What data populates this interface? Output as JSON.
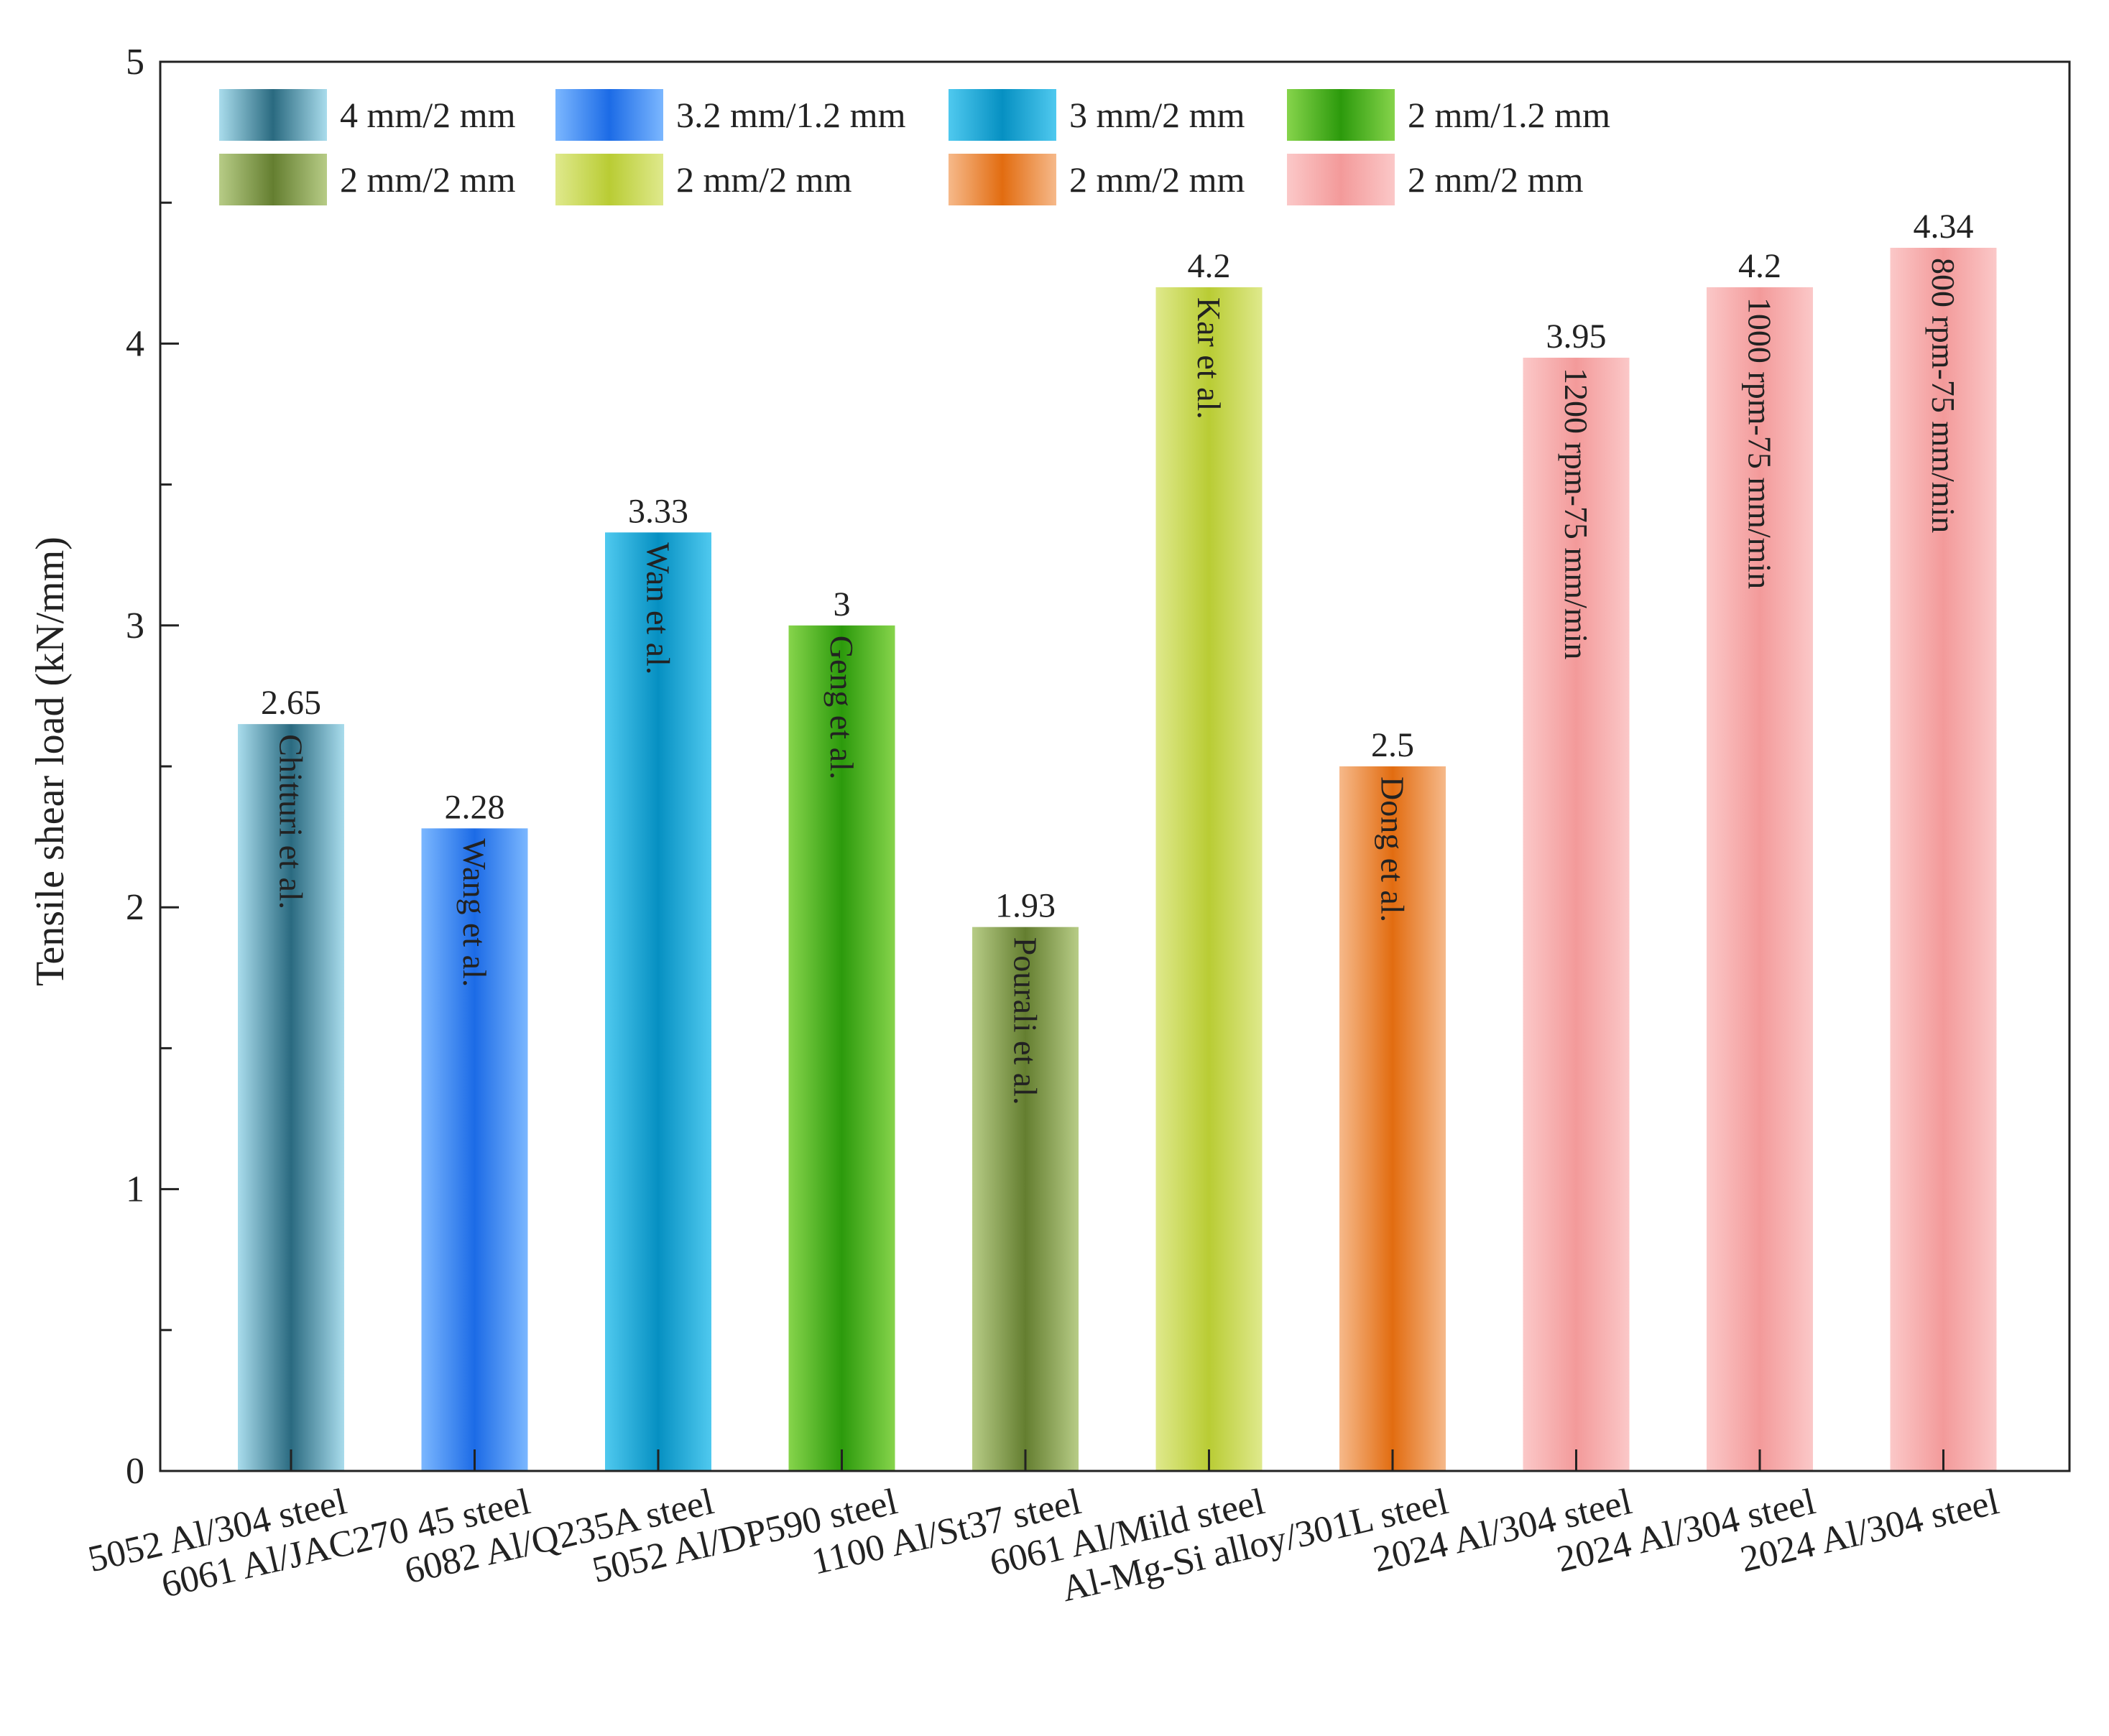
{
  "chart_data": {
    "type": "bar",
    "title": "",
    "xlabel": "",
    "ylabel": "Tensile shear load (kN/mm)",
    "ylim": [
      0,
      5
    ],
    "yticks": [
      0,
      1,
      2,
      3,
      4,
      5
    ],
    "grid": false,
    "legend_position": "top-left",
    "categories": [
      "5052 Al/304 steel",
      "6061 Al/JAC270 45 steel",
      "6082 Al/Q235A steel",
      "5052 Al/DP590 steel",
      "1100 Al/St37 steel",
      "6061 Al/Mild steel",
      "Al-Mg-Si alloy/301L steel",
      "2024 Al/304 steel",
      "2024 Al/304 steel",
      "2024 Al/304 steel"
    ],
    "values": [
      2.65,
      2.28,
      3.33,
      3.0,
      1.93,
      4.2,
      2.5,
      3.95,
      4.2,
      4.34
    ],
    "value_labels": [
      "2.65",
      "2.28",
      "3.33",
      "3",
      "1.93",
      "4.2",
      "2.5",
      "3.95",
      "4.2",
      "4.34"
    ],
    "bar_labels": [
      "Chitturi et al.",
      "Wang et al.",
      "Wan et al.",
      "Geng et al.",
      "Pourali et al.",
      "Kar et al.",
      "Dong et al.",
      "1200 rpm-75 mm/min",
      "1000 rpm-75 mm/min",
      "800 rpm-75 mm/min"
    ],
    "bar_series_index": [
      0,
      1,
      2,
      3,
      4,
      5,
      6,
      7,
      7,
      7
    ],
    "legend": [
      {
        "label": "4 mm/2 mm",
        "color": "#3f93ad",
        "light": "#a9dcec",
        "dark": "#2a6a80"
      },
      {
        "label": "3.2 mm/1.2 mm",
        "color": "#2f86f5",
        "light": "#7bb7ff",
        "dark": "#1c6be6"
      },
      {
        "label": "3 mm/2 mm",
        "color": "#10a6d8",
        "light": "#4fc9ef",
        "dark": "#0690c2"
      },
      {
        "label": "2 mm/1.2 mm",
        "color": "#3daa14",
        "light": "#86d44b",
        "dark": "#2c9a0c"
      },
      {
        "label": "2 mm/2 mm",
        "color": "#7f9c45",
        "light": "#b7cc86",
        "dark": "#647e30"
      },
      {
        "label": "2 mm/2 mm",
        "color": "#c9d84e",
        "light": "#dfe98c",
        "dark": "#b9cc34"
      },
      {
        "label": "2 mm/2 mm",
        "color": "#e8791e",
        "light": "#f6b98a",
        "dark": "#e26c10"
      },
      {
        "label": "2 mm/2 mm",
        "color": "#f7a5a5",
        "light": "#fbc8c8",
        "dark": "#f39a9a"
      }
    ]
  }
}
